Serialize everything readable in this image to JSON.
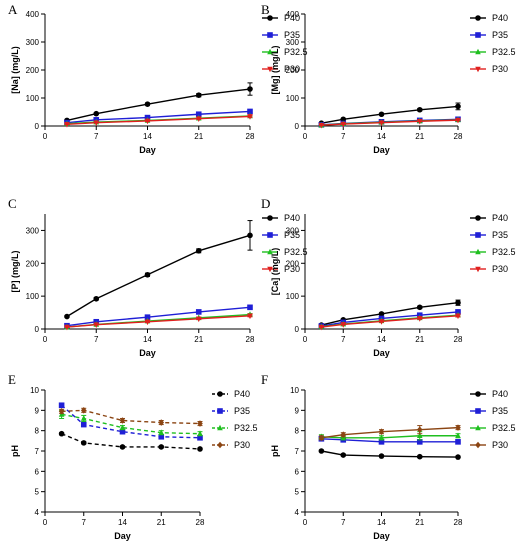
{
  "chart_data": [
    {
      "panel": "A",
      "type": "line",
      "xlabel": "Day",
      "ylabel": "[Na] (mg/L)",
      "xlim": [
        0,
        28
      ],
      "ylim": [
        0,
        400
      ],
      "xticks": [
        0,
        7,
        14,
        21,
        28
      ],
      "yticks": [
        0,
        100,
        200,
        300,
        400
      ],
      "x": [
        3,
        7,
        14,
        21,
        28
      ],
      "series": [
        {
          "name": "P40",
          "color": "#000000",
          "marker": "circle",
          "dashed": false,
          "values": [
            20,
            44,
            78,
            110,
            132
          ],
          "err": [
            2,
            3,
            4,
            6,
            22
          ]
        },
        {
          "name": "P35",
          "color": "#1f1fd6",
          "marker": "square",
          "dashed": false,
          "values": [
            12,
            22,
            30,
            42,
            52
          ],
          "err": [
            2,
            2,
            3,
            3,
            4
          ]
        },
        {
          "name": "P32.5",
          "color": "#1fbf1f",
          "marker": "triangle",
          "dashed": false,
          "values": [
            8,
            14,
            20,
            28,
            36
          ],
          "err": [
            1,
            2,
            2,
            2,
            3
          ]
        },
        {
          "name": "P30",
          "color": "#e0201e",
          "marker": "triangle-down",
          "dashed": false,
          "values": [
            6,
            12,
            18,
            26,
            34
          ],
          "err": [
            1,
            1,
            2,
            2,
            3
          ]
        }
      ]
    },
    {
      "panel": "B",
      "type": "line",
      "xlabel": "Day",
      "ylabel": "[Mg] (mg/L)",
      "xlim": [
        0,
        28
      ],
      "ylim": [
        0,
        400
      ],
      "xticks": [
        0,
        7,
        14,
        21,
        28
      ],
      "yticks": [
        0,
        100,
        200,
        300,
        400
      ],
      "x": [
        3,
        7,
        14,
        21,
        28
      ],
      "series": [
        {
          "name": "P40",
          "color": "#000000",
          "marker": "circle",
          "dashed": false,
          "values": [
            10,
            24,
            42,
            58,
            70
          ],
          "err": [
            2,
            2,
            3,
            4,
            12
          ]
        },
        {
          "name": "P35",
          "color": "#1f1fd6",
          "marker": "square",
          "dashed": false,
          "values": [
            4,
            9,
            15,
            20,
            24
          ],
          "err": [
            1,
            1,
            1,
            2,
            2
          ]
        },
        {
          "name": "P32.5",
          "color": "#1fbf1f",
          "marker": "triangle",
          "dashed": false,
          "values": [
            3,
            8,
            13,
            18,
            22
          ],
          "err": [
            1,
            1,
            1,
            2,
            2
          ]
        },
        {
          "name": "P30",
          "color": "#e0201e",
          "marker": "triangle-down",
          "dashed": false,
          "values": [
            3,
            7,
            12,
            17,
            21
          ],
          "err": [
            1,
            1,
            1,
            1,
            2
          ]
        }
      ]
    },
    {
      "panel": "C",
      "type": "line",
      "xlabel": "Day",
      "ylabel": "[P] (mg/L)",
      "xlim": [
        0,
        28
      ],
      "ylim": [
        0,
        350
      ],
      "xticks": [
        0,
        7,
        14,
        21,
        28
      ],
      "yticks": [
        0,
        100,
        200,
        300
      ],
      "x": [
        3,
        7,
        14,
        21,
        28
      ],
      "series": [
        {
          "name": "P40",
          "color": "#000000",
          "marker": "circle",
          "dashed": false,
          "values": [
            38,
            92,
            165,
            238,
            285
          ],
          "err": [
            3,
            4,
            5,
            6,
            45
          ]
        },
        {
          "name": "P35",
          "color": "#1f1fd6",
          "marker": "square",
          "dashed": false,
          "values": [
            10,
            22,
            36,
            52,
            66
          ],
          "err": [
            1,
            2,
            2,
            3,
            4
          ]
        },
        {
          "name": "P32.5",
          "color": "#1fbf1f",
          "marker": "triangle",
          "dashed": false,
          "values": [
            6,
            14,
            24,
            34,
            44
          ],
          "err": [
            1,
            1,
            2,
            2,
            3
          ]
        },
        {
          "name": "P30",
          "color": "#e0201e",
          "marker": "triangle-down",
          "dashed": false,
          "values": [
            6,
            13,
            22,
            31,
            40
          ],
          "err": [
            1,
            1,
            2,
            2,
            3
          ]
        }
      ]
    },
    {
      "panel": "D",
      "type": "line",
      "xlabel": "Day",
      "ylabel": "[Ca] (mg/L)",
      "xlim": [
        0,
        28
      ],
      "ylim": [
        0,
        350
      ],
      "xticks": [
        0,
        7,
        14,
        21,
        28
      ],
      "yticks": [
        0,
        100,
        200,
        300
      ],
      "x": [
        3,
        7,
        14,
        21,
        28
      ],
      "series": [
        {
          "name": "P40",
          "color": "#000000",
          "marker": "circle",
          "dashed": false,
          "values": [
            12,
            28,
            46,
            66,
            80
          ],
          "err": [
            2,
            2,
            3,
            4,
            8
          ]
        },
        {
          "name": "P35",
          "color": "#1f1fd6",
          "marker": "square",
          "dashed": false,
          "values": [
            9,
            20,
            32,
            42,
            52
          ],
          "err": [
            1,
            2,
            2,
            3,
            3
          ]
        },
        {
          "name": "P32.5",
          "color": "#1fbf1f",
          "marker": "triangle",
          "dashed": false,
          "values": [
            7,
            15,
            25,
            34,
            42
          ],
          "err": [
            1,
            1,
            2,
            2,
            3
          ]
        },
        {
          "name": "P30",
          "color": "#e0201e",
          "marker": "triangle-down",
          "dashed": false,
          "values": [
            6,
            14,
            23,
            32,
            40
          ],
          "err": [
            1,
            1,
            2,
            2,
            3
          ]
        }
      ]
    },
    {
      "panel": "E",
      "type": "line",
      "xlabel": "Day",
      "ylabel": "pH",
      "xlim": [
        0,
        28
      ],
      "ylim": [
        4,
        10
      ],
      "xticks": [
        0,
        7,
        14,
        21,
        28
      ],
      "yticks": [
        4,
        5,
        6,
        7,
        8,
        9,
        10
      ],
      "x": [
        3,
        7,
        14,
        21,
        28
      ],
      "series": [
        {
          "name": "P40",
          "color": "#000000",
          "marker": "circle",
          "dashed": true,
          "values": [
            7.85,
            7.4,
            7.2,
            7.2,
            7.1
          ],
          "err": [
            0.05,
            0.05,
            0.05,
            0.05,
            0.05
          ]
        },
        {
          "name": "P35",
          "color": "#1f1fd6",
          "marker": "square",
          "dashed": true,
          "values": [
            9.25,
            8.3,
            7.95,
            7.7,
            7.65
          ],
          "err": [
            0.1,
            0.1,
            0.1,
            0.1,
            0.1
          ]
        },
        {
          "name": "P32.5",
          "color": "#1fbf1f",
          "marker": "triangle",
          "dashed": true,
          "values": [
            8.8,
            8.6,
            8.15,
            7.9,
            7.85
          ],
          "err": [
            0.2,
            0.15,
            0.1,
            0.1,
            0.1
          ]
        },
        {
          "name": "P30",
          "color": "#8b4513",
          "marker": "diamond",
          "dashed": true,
          "values": [
            8.95,
            9.0,
            8.5,
            8.4,
            8.35
          ],
          "err": [
            0.1,
            0.1,
            0.1,
            0.1,
            0.1
          ]
        }
      ]
    },
    {
      "panel": "F",
      "type": "line",
      "xlabel": "Day",
      "ylabel": "pH",
      "xlim": [
        0,
        28
      ],
      "ylim": [
        4,
        10
      ],
      "xticks": [
        0,
        7,
        14,
        21,
        28
      ],
      "yticks": [
        4,
        5,
        6,
        7,
        8,
        9,
        10
      ],
      "x": [
        3,
        7,
        14,
        21,
        28
      ],
      "series": [
        {
          "name": "P40",
          "color": "#000000",
          "marker": "circle",
          "dashed": false,
          "values": [
            7.0,
            6.8,
            6.75,
            6.72,
            6.7
          ],
          "err": [
            0.04,
            0.04,
            0.04,
            0.04,
            0.04
          ]
        },
        {
          "name": "P35",
          "color": "#1f1fd6",
          "marker": "square",
          "dashed": false,
          "values": [
            7.6,
            7.55,
            7.45,
            7.45,
            7.45
          ],
          "err": [
            0.1,
            0.1,
            0.1,
            0.1,
            0.1
          ]
        },
        {
          "name": "P32.5",
          "color": "#1fbf1f",
          "marker": "triangle",
          "dashed": false,
          "values": [
            7.7,
            7.65,
            7.65,
            7.75,
            7.75
          ],
          "err": [
            0.1,
            0.1,
            0.1,
            0.2,
            0.1
          ]
        },
        {
          "name": "P30",
          "color": "#8b4513",
          "marker": "diamond",
          "dashed": false,
          "values": [
            7.65,
            7.8,
            7.95,
            8.05,
            8.15
          ],
          "err": [
            0.1,
            0.1,
            0.1,
            0.2,
            0.1
          ]
        }
      ]
    }
  ]
}
